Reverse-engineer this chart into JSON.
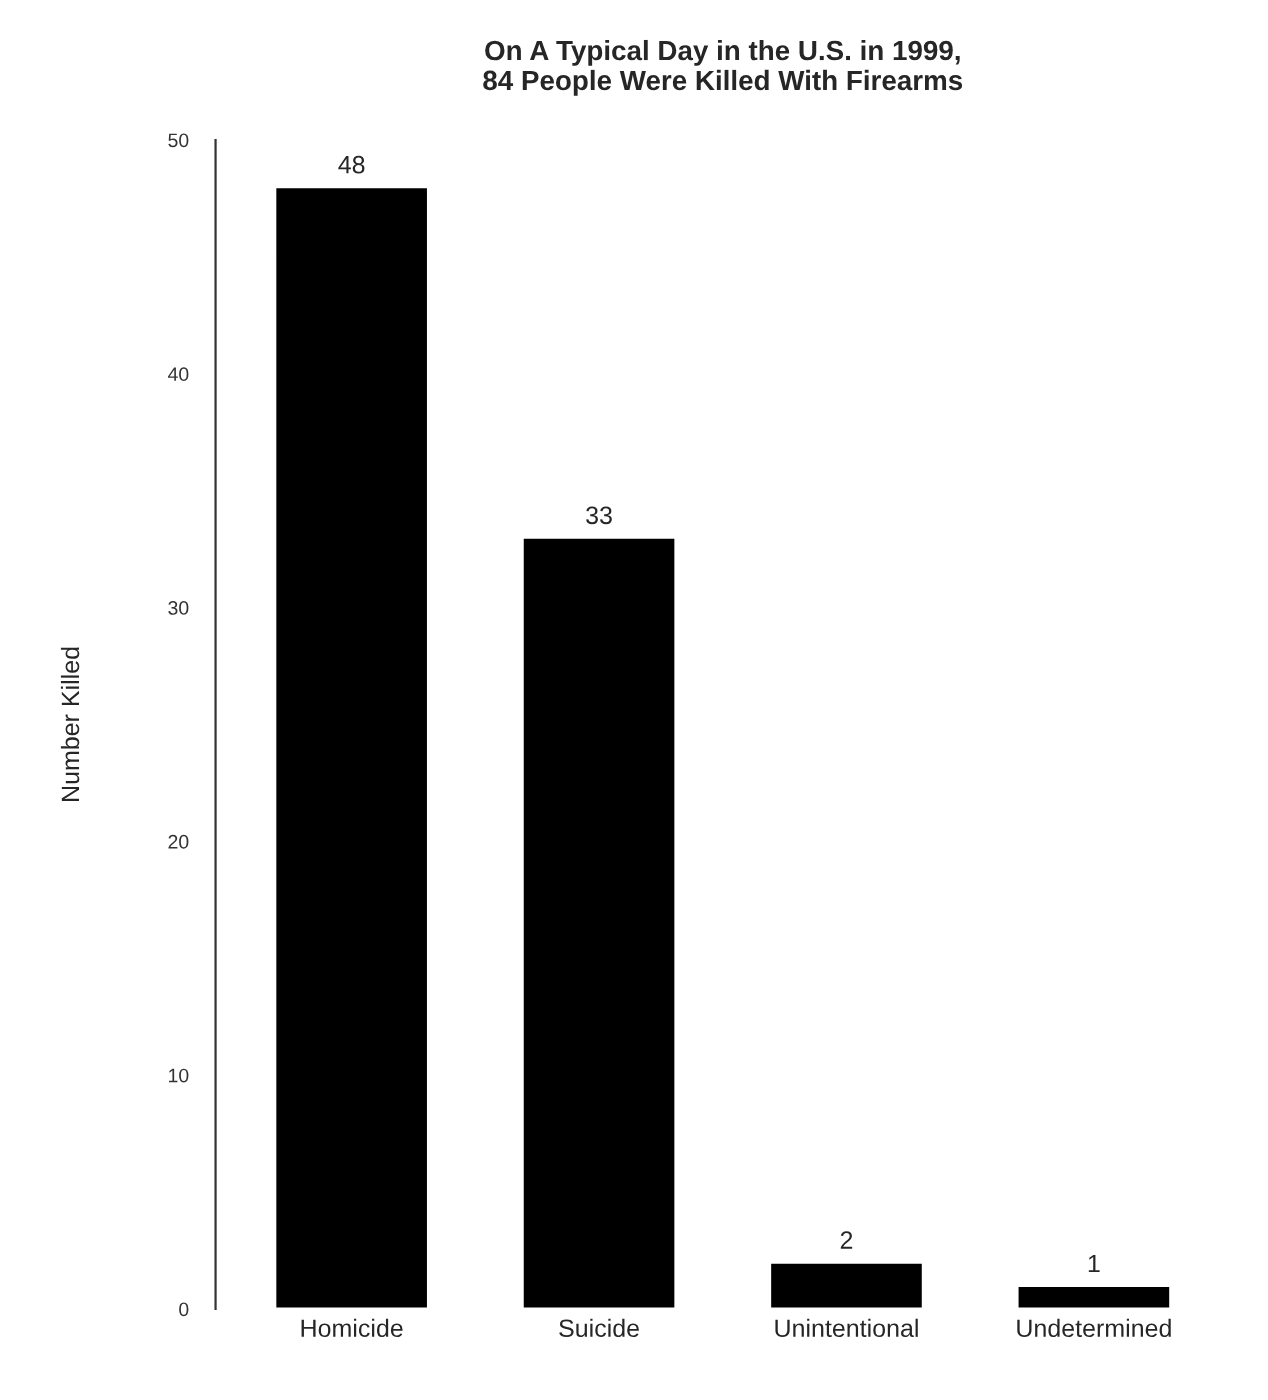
{
  "chart_data": {
    "type": "bar",
    "title": "On A Typical Day in the U.S. in 1999,\n84 People Were Killed With Firearms",
    "ylabel": "Number Killed",
    "categories": [
      "Homicide",
      "Suicide",
      "Unintentional",
      "Undetermined"
    ],
    "values": [
      48,
      33,
      2,
      1
    ],
    "color": "#000000",
    "ylim": [
      0,
      50
    ],
    "yticks": [
      0,
      10,
      20,
      30,
      40,
      50
    ],
    "data_labels": true,
    "grid": false
  }
}
